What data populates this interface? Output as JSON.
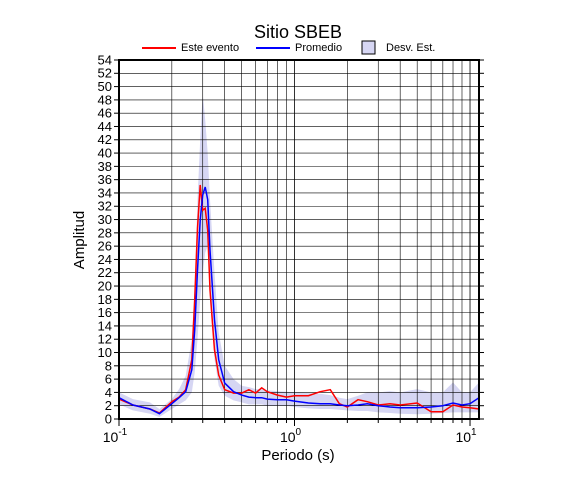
{
  "chart_data": {
    "type": "line",
    "title": "Sitio SBEB",
    "x_label": "Periodo (s)",
    "y_label": "Amplitud",
    "log_x": true,
    "grid": true,
    "xlim": [
      0.1,
      11.25
    ],
    "ylim": [
      0,
      54
    ],
    "xticks": [
      {
        "value": 0.1,
        "label": "10",
        "exponent": "-1"
      },
      {
        "value": 1,
        "label": "10",
        "exponent": "0"
      },
      {
        "value": 10,
        "label": "10",
        "exponent": "1"
      }
    ],
    "xminor_ticks": [
      0.2,
      0.3,
      0.4,
      0.5,
      0.6,
      0.7,
      0.8,
      0.9,
      2,
      3,
      4,
      5,
      6,
      7,
      8,
      9
    ],
    "yticks": [
      0,
      2,
      4,
      6,
      8,
      10,
      12,
      14,
      16,
      18,
      20,
      22,
      24,
      26,
      28,
      30,
      32,
      34,
      36,
      38,
      40,
      42,
      44,
      46,
      48,
      50,
      52,
      54
    ],
    "x": [
      0.1,
      0.12,
      0.15,
      0.17,
      0.2,
      0.22,
      0.24,
      0.26,
      0.27,
      0.28,
      0.29,
      0.3,
      0.31,
      0.32,
      0.33,
      0.35,
      0.37,
      0.4,
      0.45,
      0.5,
      0.55,
      0.6,
      0.65,
      0.7,
      0.8,
      0.9,
      1,
      1.2,
      1.4,
      1.6,
      1.8,
      2,
      2.3,
      2.6,
      3,
      3.5,
      4,
      5,
      6,
      7,
      8,
      9,
      10,
      11.25
    ],
    "band": {
      "name": "Desv. Est.",
      "color": "#d6d6f3",
      "upper": [
        4,
        3,
        2.5,
        1.5,
        3,
        4.5,
        6.5,
        12,
        20,
        33,
        42,
        49,
        45,
        40,
        33,
        22,
        13,
        8,
        6,
        5,
        4.8,
        4.5,
        4.5,
        4.3,
        4.2,
        4.1,
        4,
        3.9,
        3.8,
        3.6,
        3.2,
        3,
        3.5,
        4,
        4,
        4.2,
        4,
        4.5,
        4,
        4,
        5.5,
        4,
        4,
        5.5
      ],
      "lower": [
        2.2,
        1.3,
        0.8,
        0.3,
        1.5,
        2.2,
        2.8,
        4,
        7,
        12,
        18,
        22,
        25,
        26,
        18,
        9,
        5,
        3.5,
        2.8,
        2.5,
        2.2,
        2.2,
        2.2,
        2,
        2,
        2,
        1.8,
        1.6,
        1.5,
        1.5,
        1.4,
        1.3,
        1.2,
        1.2,
        1,
        0.9,
        0.8,
        0.7,
        0.8,
        0.9,
        1,
        1,
        1,
        1
      ]
    },
    "series": [
      {
        "name": "Este evento",
        "color": "#ff0000",
        "values": [
          3.0,
          2.1,
          1.5,
          0.9,
          2.6,
          3.3,
          4.4,
          8.9,
          17.9,
          28.7,
          35.2,
          31.4,
          31.7,
          28.4,
          19.4,
          10.4,
          6.6,
          4.4,
          3.9,
          3.9,
          4.4,
          3.9,
          4.7,
          4.1,
          3.6,
          3.3,
          3.5,
          3.5,
          4.1,
          4.4,
          2.3,
          1.8,
          2.9,
          2.6,
          2.1,
          2.3,
          2.1,
          2.4,
          1.1,
          1.1,
          2.1,
          1.8,
          1.7,
          1.5
        ]
      },
      {
        "name": "Promedio",
        "color": "#0000ff",
        "values": [
          3.2,
          2.1,
          1.5,
          0.8,
          2.3,
          3.2,
          4.1,
          7.4,
          13.4,
          22.4,
          29.9,
          33.7,
          34.9,
          33.0,
          25.4,
          14.9,
          8.9,
          5.4,
          4.1,
          3.6,
          3.3,
          3.2,
          3.2,
          3.0,
          2.9,
          2.9,
          2.7,
          2.4,
          2.3,
          2.3,
          2.1,
          2.0,
          2.1,
          2.3,
          2.0,
          1.8,
          1.7,
          1.7,
          1.8,
          2.0,
          2.4,
          2.1,
          2.3,
          3.2
        ]
      }
    ]
  }
}
